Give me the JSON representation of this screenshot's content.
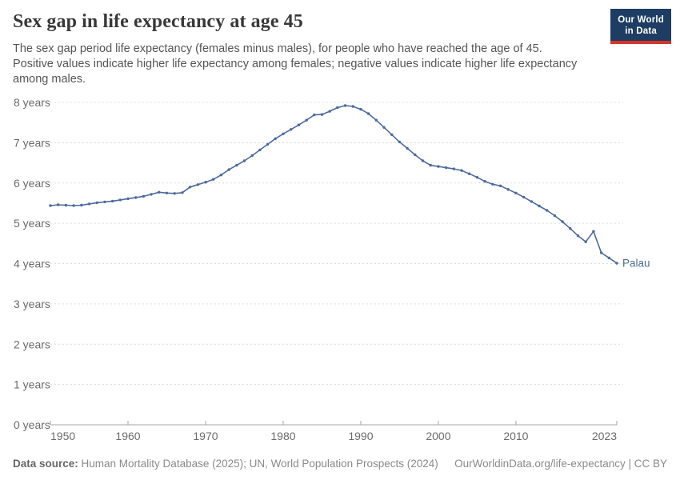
{
  "header": {
    "title": "Sex gap in life expectancy at age 45",
    "subtitle_lines": [
      "The sex gap period life expectancy (females minus males), for people who have reached the age of 45.",
      "Positive values indicate higher life expectancy among females; negative values indicate higher life expectancy",
      "among males."
    ],
    "logo": {
      "line1": "Our World",
      "line2": "in Data"
    }
  },
  "chart_data": {
    "type": "line",
    "title": "Sex gap in life expectancy at age 45",
    "entity": "Palau",
    "end_label": "Palau",
    "unit": "years",
    "y_tick_suffix": " years",
    "xlim": [
      1950,
      2023
    ],
    "ylim": [
      0,
      8
    ],
    "x_ticks": [
      1950,
      1960,
      1970,
      1980,
      1990,
      2000,
      2010,
      2023
    ],
    "y_ticks": [
      0,
      1,
      2,
      3,
      4,
      5,
      6,
      7,
      8
    ],
    "grid": "horizontal-dashed",
    "legend_position": "end-of-line-label",
    "x": [
      1950,
      1951,
      1952,
      1953,
      1954,
      1955,
      1956,
      1957,
      1958,
      1959,
      1960,
      1961,
      1962,
      1963,
      1964,
      1965,
      1966,
      1967,
      1968,
      1969,
      1970,
      1971,
      1972,
      1973,
      1974,
      1975,
      1976,
      1977,
      1978,
      1979,
      1980,
      1981,
      1982,
      1983,
      1984,
      1985,
      1986,
      1987,
      1988,
      1989,
      1990,
      1991,
      1992,
      1993,
      1994,
      1995,
      1996,
      1997,
      1998,
      1999,
      2000,
      2001,
      2002,
      2003,
      2004,
      2005,
      2006,
      2007,
      2008,
      2009,
      2010,
      2011,
      2012,
      2013,
      2014,
      2015,
      2016,
      2017,
      2018,
      2019,
      2020,
      2021,
      2022,
      2023
    ],
    "series": [
      {
        "name": "Palau",
        "values": [
          5.44,
          5.46,
          5.45,
          5.44,
          5.45,
          5.48,
          5.51,
          5.53,
          5.55,
          5.58,
          5.61,
          5.64,
          5.67,
          5.72,
          5.77,
          5.75,
          5.74,
          5.76,
          5.9,
          5.96,
          6.02,
          6.09,
          6.2,
          6.33,
          6.44,
          6.55,
          6.68,
          6.82,
          6.96,
          7.1,
          7.22,
          7.33,
          7.44,
          7.56,
          7.69,
          7.7,
          7.78,
          7.87,
          7.92,
          7.9,
          7.83,
          7.72,
          7.56,
          7.38,
          7.2,
          7.02,
          6.86,
          6.7,
          6.55,
          6.44,
          6.41,
          6.38,
          6.35,
          6.31,
          6.23,
          6.14,
          6.04,
          5.97,
          5.93,
          5.84,
          5.75,
          5.65,
          5.54,
          5.43,
          5.32,
          5.19,
          5.04,
          4.87,
          4.69,
          4.54,
          4.8,
          4.27,
          4.14,
          4.01
        ]
      }
    ],
    "line_color": "#4C6A9C",
    "gridline_color": "#dcdcdc",
    "axis_color": "#a5a5a5",
    "tick_label_color": "#6b6b6b"
  },
  "footer": {
    "source_label": "Data source:",
    "source_text": " Human Mortality Database (2025); UN, World Population Prospects (2024)",
    "link_text": "OurWorldinData.org/life-expectancy | CC BY"
  }
}
